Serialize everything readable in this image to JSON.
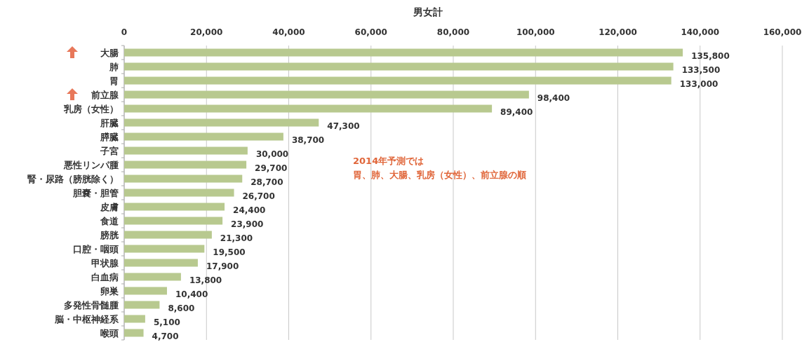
{
  "chart_data": {
    "type": "bar",
    "orientation": "horizontal",
    "title": "男女計",
    "categories": [
      "大腸",
      "肺",
      "胃",
      "前立腺",
      "乳房（女性）",
      "肝臓",
      "膵臓",
      "子宮",
      "悪性リンパ腫",
      "腎・尿路（膀胱除く）",
      "胆嚢・胆管",
      "皮膚",
      "食道",
      "膀胱",
      "口腔・咽頭",
      "甲状腺",
      "白血病",
      "卵巣",
      "多発性骨髄腫",
      "脳・中枢神経系",
      "喉頭"
    ],
    "values": [
      135800,
      133500,
      133000,
      98400,
      89400,
      47300,
      38700,
      30000,
      29700,
      28700,
      26700,
      24400,
      23900,
      21300,
      19500,
      17900,
      13800,
      10400,
      8600,
      5100,
      4700
    ],
    "value_labels": [
      "135,800",
      "133,500",
      "133,000",
      "98,400",
      "89,400",
      "47,300",
      "38,700",
      "30,000",
      "29,700",
      "28,700",
      "26,700",
      "24,400",
      "23,900",
      "21,300",
      "19,500",
      "17,900",
      "13,800",
      "10,400",
      "8,600",
      "5,100",
      "4,700"
    ],
    "color": "#b8c98f",
    "xlim": [
      0,
      160000
    ],
    "xticks": [
      {
        "value": 0,
        "label": "0"
      },
      {
        "value": 20000,
        "label": "20,000"
      },
      {
        "value": 40000,
        "label": "40,000"
      },
      {
        "value": 60000,
        "label": "60,000"
      },
      {
        "value": 80000,
        "label": "80,000"
      },
      {
        "value": 100000,
        "label": "100,000"
      },
      {
        "value": 120000,
        "label": "120,000"
      },
      {
        "value": 140000,
        "label": "140,000"
      },
      {
        "value": 160000,
        "label": "160,000"
      }
    ],
    "grid": "x",
    "annotations": [
      "2014年予測では",
      "胃、肺、大腸、乳房（女性）、前立腺の順"
    ]
  }
}
